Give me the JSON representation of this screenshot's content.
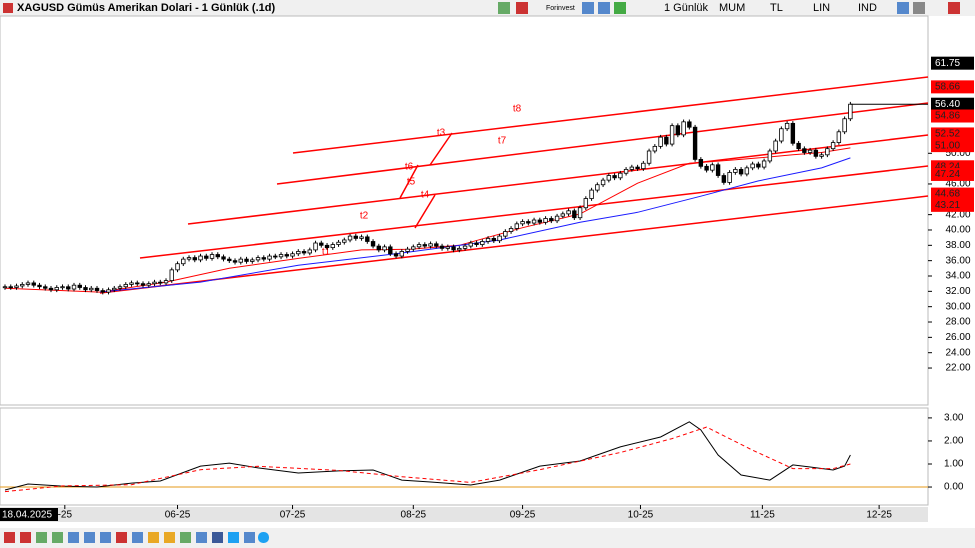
{
  "header": {
    "title": "XAGUSD Gümüs Amerikan Dolari - 1 Günlük (.1d)",
    "toolbar": [
      "Forinvest",
      "1 Günlük",
      "MUM",
      "TL",
      "LIN",
      "IND"
    ]
  },
  "chart_data": {
    "type": "candlestick",
    "xlim": [
      -0.87,
      160.5
    ],
    "ylim": [
      17.18,
      67.9
    ],
    "xticks": [
      {
        "value": 0,
        "label": "18.04.2025"
      },
      {
        "value": 10.4,
        "label": "-25"
      },
      {
        "value": 30,
        "label": "06-25"
      },
      {
        "value": 50,
        "label": "07-25"
      },
      {
        "value": 71,
        "label": "08-25"
      },
      {
        "value": 90,
        "label": "09-25"
      },
      {
        "value": 110.5,
        "label": "10-25"
      },
      {
        "value": 131.7,
        "label": "11-25"
      },
      {
        "value": 152,
        "label": "12-25"
      }
    ],
    "yticks": [
      {
        "value": 22,
        "label": "22.00"
      },
      {
        "value": 24,
        "label": "24.00"
      },
      {
        "value": 26,
        "label": "26.00"
      },
      {
        "value": 28,
        "label": "28.00"
      },
      {
        "value": 30,
        "label": "30.00"
      },
      {
        "value": 32,
        "label": "32.00"
      },
      {
        "value": 34,
        "label": "34.00"
      },
      {
        "value": 36,
        "label": "36.00"
      },
      {
        "value": 38,
        "label": "38.00"
      },
      {
        "value": 40,
        "label": "40.00"
      },
      {
        "value": 42,
        "label": "42.00"
      },
      {
        "value": 46,
        "label": "46.00"
      },
      {
        "value": 50,
        "label": "50.00"
      }
    ],
    "ohlc": [
      [
        32.5,
        32.9,
        32.2,
        32.6
      ],
      [
        32.6,
        32.9,
        32.2,
        32.5
      ],
      [
        32.5,
        33.0,
        32.2,
        32.7
      ],
      [
        32.7,
        33.2,
        32.4,
        32.9
      ],
      [
        32.9,
        33.4,
        32.6,
        33.1
      ],
      [
        33.1,
        33.4,
        32.5,
        32.8
      ],
      [
        32.8,
        33.1,
        32.3,
        32.6
      ],
      [
        32.6,
        32.9,
        32.1,
        32.4
      ],
      [
        32.4,
        32.7,
        31.9,
        32.2
      ],
      [
        32.2,
        32.8,
        31.9,
        32.5
      ],
      [
        32.5,
        32.9,
        32.2,
        32.6
      ],
      [
        32.6,
        32.9,
        32.0,
        32.3
      ],
      [
        32.3,
        33.1,
        32.0,
        32.8
      ],
      [
        32.8,
        33.1,
        32.2,
        32.5
      ],
      [
        32.5,
        32.8,
        31.9,
        32.2
      ],
      [
        32.2,
        32.7,
        31.9,
        32.4
      ],
      [
        32.4,
        32.7,
        31.8,
        32.1
      ],
      [
        32.1,
        32.4,
        31.6,
        31.9
      ],
      [
        31.9,
        32.5,
        31.6,
        32.2
      ],
      [
        32.2,
        32.7,
        31.9,
        32.4
      ],
      [
        32.4,
        32.9,
        32.1,
        32.6
      ],
      [
        32.6,
        33.2,
        32.3,
        32.9
      ],
      [
        32.9,
        33.4,
        32.6,
        33.1
      ],
      [
        33.1,
        33.4,
        32.7,
        33.0
      ],
      [
        33.0,
        33.3,
        32.5,
        32.8
      ],
      [
        32.8,
        33.3,
        32.5,
        33.0
      ],
      [
        33.0,
        33.5,
        32.7,
        33.2
      ],
      [
        33.2,
        33.5,
        32.8,
        33.1
      ],
      [
        33.1,
        33.7,
        32.8,
        33.4
      ],
      [
        33.4,
        35.1,
        33.1,
        34.8
      ],
      [
        34.8,
        35.9,
        34.5,
        35.6
      ],
      [
        35.6,
        36.5,
        35.3,
        36.2
      ],
      [
        36.2,
        36.7,
        35.9,
        36.4
      ],
      [
        36.4,
        36.7,
        35.8,
        36.1
      ],
      [
        36.1,
        36.9,
        35.8,
        36.6
      ],
      [
        36.6,
        36.9,
        36.0,
        36.3
      ],
      [
        36.3,
        37.1,
        36.0,
        36.8
      ],
      [
        36.8,
        37.1,
        36.2,
        36.5
      ],
      [
        36.5,
        36.8,
        35.9,
        36.2
      ],
      [
        36.2,
        36.5,
        35.7,
        36.0
      ],
      [
        36.0,
        36.3,
        35.5,
        35.8
      ],
      [
        35.8,
        36.5,
        35.5,
        36.2
      ],
      [
        36.2,
        36.5,
        35.6,
        35.9
      ],
      [
        35.9,
        36.4,
        35.6,
        36.1
      ],
      [
        36.1,
        36.7,
        35.8,
        36.4
      ],
      [
        36.4,
        36.7,
        35.9,
        36.2
      ],
      [
        36.2,
        36.9,
        35.9,
        36.6
      ],
      [
        36.6,
        36.9,
        36.2,
        36.5
      ],
      [
        36.5,
        37.1,
        36.2,
        36.8
      ],
      [
        36.8,
        37.1,
        36.3,
        36.6
      ],
      [
        36.6,
        37.2,
        36.3,
        36.9
      ],
      [
        36.9,
        37.5,
        36.6,
        37.2
      ],
      [
        37.2,
        37.5,
        36.7,
        37.0
      ],
      [
        37.0,
        37.7,
        36.7,
        37.4
      ],
      [
        37.4,
        38.6,
        37.1,
        38.3
      ],
      [
        38.3,
        38.6,
        37.7,
        38.0
      ],
      [
        38.0,
        38.3,
        37.4,
        37.7
      ],
      [
        37.7,
        38.4,
        37.4,
        38.1
      ],
      [
        38.1,
        38.7,
        37.8,
        38.4
      ],
      [
        38.4,
        39.0,
        38.1,
        38.7
      ],
      [
        38.7,
        39.5,
        38.4,
        39.2
      ],
      [
        39.2,
        39.5,
        38.6,
        38.9
      ],
      [
        38.9,
        39.4,
        38.6,
        39.1
      ],
      [
        39.1,
        39.4,
        38.2,
        38.5
      ],
      [
        38.5,
        38.8,
        37.6,
        37.9
      ],
      [
        37.9,
        38.2,
        37.1,
        37.4
      ],
      [
        37.4,
        38.1,
        37.1,
        37.8
      ],
      [
        37.8,
        38.1,
        36.6,
        36.9
      ],
      [
        36.9,
        37.2,
        36.3,
        36.6
      ],
      [
        36.6,
        37.5,
        36.3,
        37.2
      ],
      [
        37.2,
        37.8,
        36.9,
        37.5
      ],
      [
        37.5,
        38.1,
        37.2,
        37.8
      ],
      [
        37.8,
        38.4,
        37.5,
        38.1
      ],
      [
        38.1,
        38.4,
        37.6,
        37.9
      ],
      [
        37.9,
        38.5,
        37.6,
        38.2
      ],
      [
        38.2,
        38.5,
        37.6,
        37.9
      ],
      [
        37.9,
        38.2,
        37.3,
        37.6
      ],
      [
        37.6,
        38.1,
        37.3,
        37.8
      ],
      [
        37.8,
        38.1,
        37.1,
        37.4
      ],
      [
        37.4,
        37.9,
        37.1,
        37.6
      ],
      [
        37.6,
        38.2,
        37.3,
        37.9
      ],
      [
        37.9,
        38.6,
        37.6,
        38.3
      ],
      [
        38.3,
        38.6,
        37.8,
        38.1
      ],
      [
        38.1,
        38.8,
        37.8,
        38.5
      ],
      [
        38.5,
        39.2,
        38.2,
        38.9
      ],
      [
        38.9,
        39.2,
        38.3,
        38.6
      ],
      [
        38.6,
        39.5,
        38.3,
        39.2
      ],
      [
        39.2,
        40.1,
        38.9,
        39.8
      ],
      [
        39.8,
        40.5,
        39.5,
        40.2
      ],
      [
        40.2,
        41.1,
        39.9,
        40.8
      ],
      [
        40.8,
        41.4,
        40.5,
        41.1
      ],
      [
        41.1,
        41.4,
        40.6,
        40.9
      ],
      [
        40.9,
        41.6,
        40.6,
        41.3
      ],
      [
        41.3,
        41.6,
        40.7,
        41.0
      ],
      [
        41.0,
        41.8,
        40.7,
        41.5
      ],
      [
        41.5,
        41.8,
        40.9,
        41.2
      ],
      [
        41.2,
        42.1,
        40.9,
        41.8
      ],
      [
        41.8,
        42.4,
        41.5,
        42.1
      ],
      [
        42.1,
        42.8,
        41.8,
        42.5
      ],
      [
        42.5,
        42.8,
        41.3,
        41.6
      ],
      [
        41.6,
        43.2,
        41.3,
        42.9
      ],
      [
        42.9,
        44.4,
        42.6,
        44.1
      ],
      [
        44.1,
        45.5,
        43.8,
        45.2
      ],
      [
        45.2,
        46.2,
        44.9,
        45.9
      ],
      [
        45.9,
        46.8,
        45.6,
        46.5
      ],
      [
        46.5,
        47.4,
        46.2,
        47.1
      ],
      [
        47.1,
        47.4,
        46.5,
        46.8
      ],
      [
        46.8,
        47.7,
        46.5,
        47.4
      ],
      [
        47.4,
        48.2,
        47.1,
        47.9
      ],
      [
        47.9,
        48.5,
        47.6,
        48.2
      ],
      [
        48.2,
        48.5,
        47.7,
        48.0
      ],
      [
        48.0,
        49.0,
        47.7,
        48.7
      ],
      [
        48.7,
        50.6,
        48.4,
        50.3
      ],
      [
        50.3,
        51.2,
        50.0,
        50.9
      ],
      [
        50.9,
        52.4,
        50.6,
        52.1
      ],
      [
        52.1,
        52.4,
        50.9,
        51.2
      ],
      [
        51.2,
        53.9,
        50.9,
        53.6
      ],
      [
        53.6,
        53.9,
        52.1,
        52.4
      ],
      [
        52.4,
        54.4,
        52.1,
        54.1
      ],
      [
        54.1,
        54.4,
        53.1,
        53.4
      ],
      [
        53.4,
        53.7,
        48.9,
        49.2
      ],
      [
        49.2,
        49.5,
        48.0,
        48.3
      ],
      [
        48.3,
        48.6,
        47.5,
        47.8
      ],
      [
        47.8,
        48.8,
        47.5,
        48.5
      ],
      [
        48.5,
        48.8,
        46.8,
        47.1
      ],
      [
        47.1,
        47.4,
        45.9,
        46.2
      ],
      [
        46.2,
        47.8,
        45.9,
        47.5
      ],
      [
        47.5,
        48.2,
        47.2,
        47.9
      ],
      [
        47.9,
        48.2,
        47.0,
        47.3
      ],
      [
        47.3,
        48.4,
        47.0,
        48.1
      ],
      [
        48.1,
        48.9,
        47.8,
        48.6
      ],
      [
        48.6,
        48.9,
        47.9,
        48.2
      ],
      [
        48.2,
        49.3,
        47.9,
        49.0
      ],
      [
        49.0,
        50.6,
        48.7,
        50.3
      ],
      [
        50.3,
        51.9,
        50.0,
        51.6
      ],
      [
        51.6,
        53.5,
        51.3,
        53.2
      ],
      [
        53.2,
        54.2,
        52.9,
        53.9
      ],
      [
        53.9,
        54.2,
        51.0,
        51.3
      ],
      [
        51.3,
        51.6,
        50.3,
        50.6
      ],
      [
        50.6,
        50.9,
        49.8,
        50.1
      ],
      [
        50.1,
        50.7,
        49.8,
        50.4
      ],
      [
        50.4,
        50.7,
        49.3,
        49.6
      ],
      [
        49.6,
        50.1,
        49.3,
        49.8
      ],
      [
        49.8,
        50.9,
        49.5,
        50.6
      ],
      [
        50.6,
        51.7,
        50.3,
        51.4
      ],
      [
        51.4,
        53.1,
        51.1,
        52.8
      ],
      [
        52.8,
        54.8,
        52.5,
        54.5
      ],
      [
        54.5,
        56.7,
        54.2,
        56.4
      ]
    ],
    "overlays": [
      {
        "color": "#ff0000",
        "x": [
          0,
          16.5,
          28,
          39,
          51,
          62,
          70.5,
          79,
          90,
          100,
          110,
          119,
          126,
          131,
          137,
          142,
          147
        ],
        "values": [
          32.4,
          31.9,
          33.2,
          35.0,
          36.3,
          37.4,
          37.5,
          38.0,
          40.3,
          42.1,
          46.1,
          48.7,
          49.1,
          49.4,
          49.8,
          50.1,
          50.7
        ]
      },
      {
        "color": "#1a1aff",
        "x": [
          16.5,
          34,
          51,
          69,
          86,
          100,
          110,
          121,
          131,
          142,
          147
        ],
        "values": [
          31.9,
          33.2,
          35.4,
          37.0,
          38.7,
          41.0,
          42.3,
          44.4,
          46.4,
          48.1,
          49.4
        ]
      }
    ],
    "price_labels": [
      {
        "value": 61.75,
        "label": "61.75",
        "color": "#000000"
      },
      {
        "value": 58.66,
        "label": "58.66",
        "color": "#ff0000"
      },
      {
        "value": 56.4,
        "label": "56.40",
        "color": "#000000"
      },
      {
        "value": 54.86,
        "label": "54.86",
        "color": "#ff0000"
      },
      {
        "value": 52.52,
        "label": "52.52",
        "color": "#ff0000"
      },
      {
        "value": 51,
        "label": "51.00",
        "color": "#ff0000"
      },
      {
        "value": 48.24,
        "label": "48.24",
        "color": "#ff0000"
      },
      {
        "value": 47.24,
        "label": "47.24",
        "color": "#ff0000"
      },
      {
        "value": 44.68,
        "label": "44.68",
        "color": "#ff0000"
      },
      {
        "value": 43.21,
        "label": "43.21",
        "color": "#ff0000"
      }
    ],
    "annotations": [
      "t8",
      "t7",
      "t3",
      "t6",
      "t5",
      "t4",
      "t2",
      "t1"
    ],
    "indicator": {
      "ylim": [
        -0.78,
        3.43
      ],
      "yticks": [
        {
          "value": 0,
          "label": "0.00"
        },
        {
          "value": 1,
          "label": "1.00"
        },
        {
          "value": 2,
          "label": "2.00"
        },
        {
          "value": 3,
          "label": "3.00"
        }
      ],
      "baseline": 0,
      "baseline_color": "#e69a1a",
      "series": [
        {
          "color": "#000000",
          "dashed": false,
          "x": [
            0,
            4,
            10,
            16,
            22,
            27,
            34,
            39,
            44,
            51,
            58,
            64,
            69,
            74,
            81,
            86,
            93,
            100,
            107,
            114,
            119,
            121,
            124,
            128,
            133,
            137,
            140,
            144,
            146,
            147
          ],
          "values": [
            -0.13,
            0.13,
            0.04,
            0.0,
            0.17,
            0.26,
            0.91,
            1.04,
            0.83,
            0.61,
            0.7,
            0.74,
            0.3,
            0.22,
            0.09,
            0.3,
            0.91,
            1.13,
            1.74,
            2.17,
            2.83,
            2.48,
            1.39,
            0.52,
            0.3,
            0.96,
            0.87,
            0.74,
            0.91,
            1.39
          ]
        },
        {
          "color": "#ff0000",
          "dashed": true,
          "x": [
            0,
            10,
            22,
            34,
            44,
            58,
            69,
            81,
            93,
            107,
            116,
            122,
            130,
            137,
            144,
            147
          ],
          "values": [
            -0.2,
            0.05,
            0.1,
            0.75,
            0.9,
            0.72,
            0.45,
            0.2,
            0.75,
            1.5,
            2.1,
            2.6,
            1.6,
            0.8,
            0.8,
            1.0
          ]
        }
      ]
    }
  }
}
